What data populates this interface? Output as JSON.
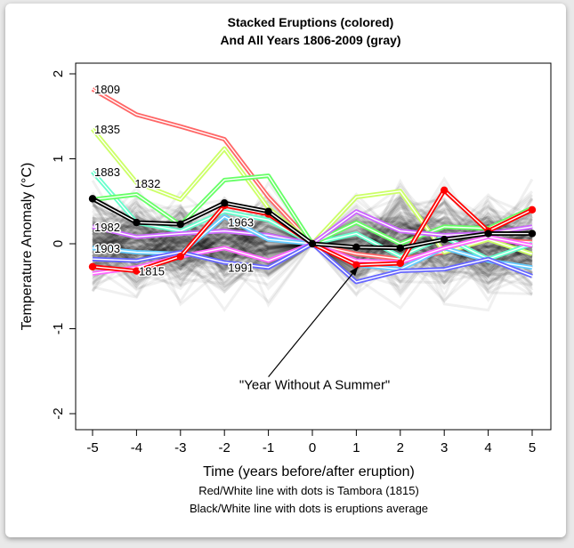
{
  "chart_data": {
    "type": "line",
    "title": "Stacked Eruptions (colored)",
    "subtitle": "And All Years 1806-2009 (gray)",
    "xlabel": "Time (years before/after eruption)",
    "ylabel": "Temperature Anomaly (°C)",
    "notes": [
      "Red/White line with dots is Tambora (1815)",
      "Black/White line with dots is eruptions average"
    ],
    "x": [
      -5,
      -4,
      -3,
      -2,
      -1,
      0,
      1,
      2,
      3,
      4,
      5
    ],
    "x_ticks": [
      "-5",
      "-4",
      "-3",
      "-2",
      "-1",
      "0",
      "1",
      "2",
      "3",
      "4",
      "5"
    ],
    "y_ticks": [
      "2",
      "1",
      "0",
      "-1",
      "-2"
    ],
    "xlim": [
      -5.5,
      5.5
    ],
    "ylim": [
      -2.1,
      2.1
    ],
    "grid": false,
    "annotation": {
      "text": "\"Year Without A Summer\"",
      "points_to": [
        1,
        -0.25
      ],
      "text_at": [
        -1,
        -1.65
      ]
    },
    "series": [
      {
        "name": "1809",
        "color": "#ff6666",
        "values": [
          1.82,
          1.52,
          1.38,
          1.23,
          0.55,
          0,
          -0.12,
          -0.18,
          -0.1,
          0.05,
          0.02
        ]
      },
      {
        "name": "1835",
        "color": "#ccff66",
        "values": [
          1.35,
          0.72,
          0.52,
          1.12,
          0.42,
          0,
          0.55,
          0.62,
          -0.1,
          0.05,
          -0.12
        ]
      },
      {
        "name": "1883",
        "color": "#66ffcc",
        "values": [
          0.85,
          0.25,
          0.15,
          0.38,
          0.28,
          0,
          0.12,
          -0.15,
          0.08,
          -0.18,
          0.0
        ]
      },
      {
        "name": "1832",
        "color": "#66ff66",
        "values": [
          0.52,
          0.58,
          0.22,
          0.75,
          0.8,
          0,
          0.25,
          0.0,
          0.2,
          0.18,
          0.42
        ]
      },
      {
        "name": "1982",
        "color": "#cc66ff",
        "values": [
          0.2,
          0.08,
          0.12,
          0.15,
          0.1,
          0,
          0.38,
          0.15,
          0.1,
          0.12,
          0.2
        ]
      },
      {
        "name": "1903",
        "color": "#66ccff",
        "values": [
          -0.05,
          -0.1,
          -0.12,
          0.32,
          0.05,
          0,
          -0.25,
          -0.3,
          -0.05,
          -0.2,
          -0.28
        ]
      },
      {
        "name": "1963",
        "color": "#ff66ff",
        "values": [
          -0.35,
          -0.28,
          -0.15,
          -0.05,
          -0.2,
          0,
          -0.2,
          -0.22,
          -0.05,
          0.08,
          -0.02
        ]
      },
      {
        "name": "1991",
        "color": "#6666ff",
        "values": [
          -0.18,
          -0.2,
          -0.1,
          -0.22,
          -0.28,
          0,
          -0.45,
          -0.32,
          -0.3,
          -0.18,
          -0.38
        ]
      },
      {
        "name": "1815",
        "color": "#ff0000",
        "values": [
          -0.27,
          -0.32,
          -0.15,
          0.45,
          0.35,
          0,
          -0.25,
          -0.23,
          0.63,
          0.15,
          0.4
        ],
        "dots": true
      },
      {
        "name": "Eruptions average",
        "color": "#000000",
        "values": [
          0.53,
          0.25,
          0.23,
          0.48,
          0.38,
          0,
          -0.04,
          -0.05,
          0.05,
          0.12,
          0.12
        ],
        "dots": true
      }
    ]
  }
}
